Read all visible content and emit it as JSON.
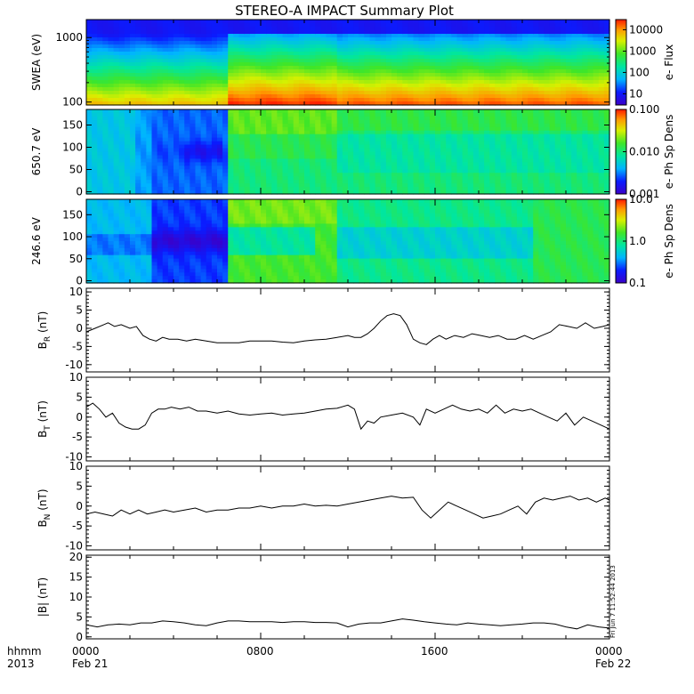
{
  "figure": {
    "title": "STEREO-A IMPACT Summary Plot",
    "stamp": "Fri Jun  7 11:52:44 2013",
    "time_axis": {
      "row1_labels": [
        "hhmm",
        "0000",
        "0800",
        "1600",
        "0000"
      ],
      "row2_labels": [
        "2013",
        "Feb 21",
        "Feb 22"
      ],
      "range_hours": [
        0,
        24
      ],
      "major_ticks_hours": [
        0,
        8,
        16,
        24
      ]
    }
  },
  "chart_data": [
    {
      "type": "heatmap",
      "name": "swea",
      "ylabel": "SWEA (eV)",
      "yscale": "log",
      "ylim": [
        90,
        1900
      ],
      "ytick_labels": [
        "100",
        "1000"
      ],
      "colorbar": {
        "label": "e- Flux",
        "scale": "log",
        "range": [
          3,
          30000
        ],
        "tick_labels": [
          "10",
          "100",
          "1000",
          "10000"
        ]
      }
    },
    {
      "type": "heatmap",
      "name": "pad650",
      "ylabel": "650.7 eV",
      "ylim": [
        -5,
        185
      ],
      "ytick_labels": [
        "0",
        "50",
        "100",
        "150"
      ],
      "colorbar": {
        "label": "e- Ph Sp Dens",
        "scale": "log",
        "range": [
          0.001,
          0.1
        ],
        "tick_labels": [
          "0.001",
          "0.010",
          "0.100"
        ]
      }
    },
    {
      "type": "heatmap",
      "name": "pad246",
      "ylabel": "246.6 eV",
      "ylim": [
        -5,
        185
      ],
      "ytick_labels": [
        "0",
        "50",
        "100",
        "150"
      ],
      "colorbar": {
        "label": "e- Ph Sp Dens",
        "scale": "log",
        "range": [
          0.1,
          10
        ],
        "tick_labels": [
          "0.1",
          "1.0",
          "10.0"
        ]
      }
    },
    {
      "type": "line",
      "name": "br",
      "ylabel_main": "B",
      "ylabel_sub": "R",
      "ylabel_tail": "(nT)",
      "ylim": [
        -12,
        11
      ],
      "ytick_labels": [
        "-10",
        "-5",
        "0",
        "5",
        "10"
      ],
      "x": [
        0,
        0.4,
        0.8,
        1.0,
        1.3,
        1.6,
        2.0,
        2.3,
        2.6,
        2.9,
        3.2,
        3.5,
        3.8,
        4.2,
        4.6,
        5.0,
        5.5,
        6.0,
        6.5,
        7.0,
        7.5,
        8.0,
        8.5,
        9.0,
        9.5,
        10.0,
        10.5,
        11.0,
        11.5,
        12.0,
        12.3,
        12.6,
        12.9,
        13.2,
        13.5,
        13.8,
        14.1,
        14.4,
        14.7,
        15.0,
        15.3,
        15.6,
        15.9,
        16.2,
        16.5,
        16.9,
        17.3,
        17.7,
        18.1,
        18.5,
        18.9,
        19.3,
        19.7,
        20.1,
        20.5,
        20.9,
        21.3,
        21.7,
        22.1,
        22.5,
        22.9,
        23.3,
        23.7,
        24.0
      ],
      "y": [
        -1,
        0,
        1,
        1.5,
        0.5,
        1,
        0,
        0.5,
        -2,
        -3,
        -3.5,
        -2.5,
        -3,
        -3,
        -3.5,
        -3,
        -3.5,
        -4,
        -4,
        -4,
        -3.5,
        -3.5,
        -3.5,
        -3.8,
        -4,
        -3.5,
        -3.2,
        -3,
        -2.5,
        -2,
        -2.5,
        -2.5,
        -1.5,
        0,
        2,
        3.5,
        4,
        3.5,
        1,
        -3,
        -4,
        -4.5,
        -3,
        -2,
        -3,
        -2,
        -2.5,
        -1.5,
        -2,
        -2.5,
        -2,
        -3,
        -3,
        -2,
        -3,
        -2,
        -1,
        1,
        0.5,
        0,
        1.5,
        0,
        0.5,
        1
      ]
    },
    {
      "type": "line",
      "name": "bt",
      "ylabel_main": "B",
      "ylabel_sub": "T",
      "ylabel_tail": "(nT)",
      "ylim": [
        -11,
        10
      ],
      "ytick_labels": [
        "-10",
        "-5",
        "0",
        "5",
        "10"
      ],
      "x": [
        0,
        0.3,
        0.6,
        0.9,
        1.2,
        1.5,
        1.8,
        2.1,
        2.4,
        2.7,
        3.0,
        3.3,
        3.6,
        3.9,
        4.3,
        4.7,
        5.1,
        5.5,
        6.0,
        6.5,
        7.0,
        7.5,
        8.0,
        8.5,
        9.0,
        9.5,
        10.0,
        10.5,
        11.0,
        11.5,
        12.0,
        12.3,
        12.6,
        12.9,
        13.2,
        13.5,
        14.0,
        14.5,
        15.0,
        15.3,
        15.6,
        16.0,
        16.4,
        16.8,
        17.2,
        17.6,
        18.0,
        18.4,
        18.8,
        19.2,
        19.6,
        20.0,
        20.4,
        20.8,
        21.2,
        21.6,
        22.0,
        22.4,
        22.8,
        23.2,
        23.6,
        24.0
      ],
      "y": [
        2.5,
        3.5,
        2,
        0,
        1,
        -1.5,
        -2.5,
        -3,
        -3,
        -2,
        1,
        2,
        2,
        2.5,
        2,
        2.5,
        1.5,
        1.5,
        1,
        1.5,
        0.8,
        0.5,
        0.8,
        1,
        0.5,
        0.8,
        1,
        1.5,
        2,
        2.2,
        3,
        2,
        -3,
        -1,
        -1.5,
        0,
        0.5,
        1,
        0,
        -2,
        2,
        1,
        2,
        3,
        2,
        1.5,
        2,
        1,
        3,
        1,
        2,
        1.5,
        2,
        1,
        0,
        -1,
        1,
        -2,
        0,
        -1,
        -2,
        -3
      ]
    },
    {
      "type": "line",
      "name": "bn",
      "ylabel_main": "B",
      "ylabel_sub": "N",
      "ylabel_tail": "(nT)",
      "ylim": [
        -11,
        10
      ],
      "ytick_labels": [
        "-10",
        "-5",
        "0",
        "5",
        "10"
      ],
      "x": [
        0,
        0.4,
        0.8,
        1.2,
        1.6,
        2.0,
        2.4,
        2.8,
        3.2,
        3.6,
        4.0,
        4.5,
        5.0,
        5.5,
        6.0,
        6.5,
        7.0,
        7.5,
        8.0,
        8.5,
        9.0,
        9.5,
        10.0,
        10.5,
        11.0,
        11.5,
        12.0,
        12.5,
        13.0,
        13.5,
        14.0,
        14.5,
        15.0,
        15.4,
        15.8,
        16.2,
        16.6,
        17.0,
        17.4,
        17.8,
        18.2,
        18.6,
        19.0,
        19.4,
        19.8,
        20.2,
        20.6,
        21.0,
        21.4,
        21.8,
        22.2,
        22.6,
        23.0,
        23.4,
        23.8,
        24.0
      ],
      "y": [
        -2,
        -1.5,
        -2,
        -2.5,
        -1,
        -2,
        -1,
        -2,
        -1.5,
        -1,
        -1.5,
        -1,
        -0.5,
        -1.5,
        -1,
        -1,
        -0.5,
        -0.5,
        0,
        -0.5,
        0,
        0,
        0.5,
        0,
        0.2,
        0,
        0.5,
        1,
        1.5,
        2,
        2.5,
        2,
        2.2,
        -1,
        -3,
        -1,
        1,
        0,
        -1,
        -2,
        -3,
        -2.5,
        -2,
        -1,
        0,
        -2,
        1,
        2,
        1.5,
        2,
        2.5,
        1.5,
        2,
        1,
        2,
        1.5
      ]
    },
    {
      "type": "line",
      "name": "btot",
      "ylabel_main": "|B|",
      "ylabel_sub": "",
      "ylabel_tail": "(nT)",
      "ylim": [
        -0.5,
        20.5
      ],
      "ytick_labels": [
        "0",
        "5",
        "10",
        "15",
        "20"
      ],
      "x": [
        0,
        0.5,
        1.0,
        1.5,
        2.0,
        2.5,
        3.0,
        3.5,
        4.0,
        4.5,
        5.0,
        5.5,
        6.0,
        6.5,
        7.0,
        7.5,
        8.0,
        8.5,
        9.0,
        9.5,
        10.0,
        10.5,
        11.0,
        11.5,
        12.0,
        12.5,
        13.0,
        13.5,
        14.0,
        14.5,
        15.0,
        15.5,
        16.0,
        16.5,
        17.0,
        17.5,
        18.0,
        18.5,
        19.0,
        19.5,
        20.0,
        20.5,
        21.0,
        21.5,
        22.0,
        22.5,
        23.0,
        23.5,
        24.0
      ],
      "y": [
        3,
        2.5,
        3,
        3.2,
        3,
        3.5,
        3.5,
        4,
        3.8,
        3.5,
        3,
        2.8,
        3.5,
        4,
        4,
        3.8,
        3.8,
        3.8,
        3.6,
        3.8,
        3.8,
        3.6,
        3.6,
        3.5,
        2.5,
        3.2,
        3.5,
        3.5,
        4,
        4.5,
        4.2,
        3.8,
        3.5,
        3.2,
        3,
        3.5,
        3.2,
        3,
        2.8,
        3,
        3.2,
        3.5,
        3.5,
        3.2,
        2.5,
        2,
        3,
        2.5,
        2.2
      ]
    }
  ]
}
